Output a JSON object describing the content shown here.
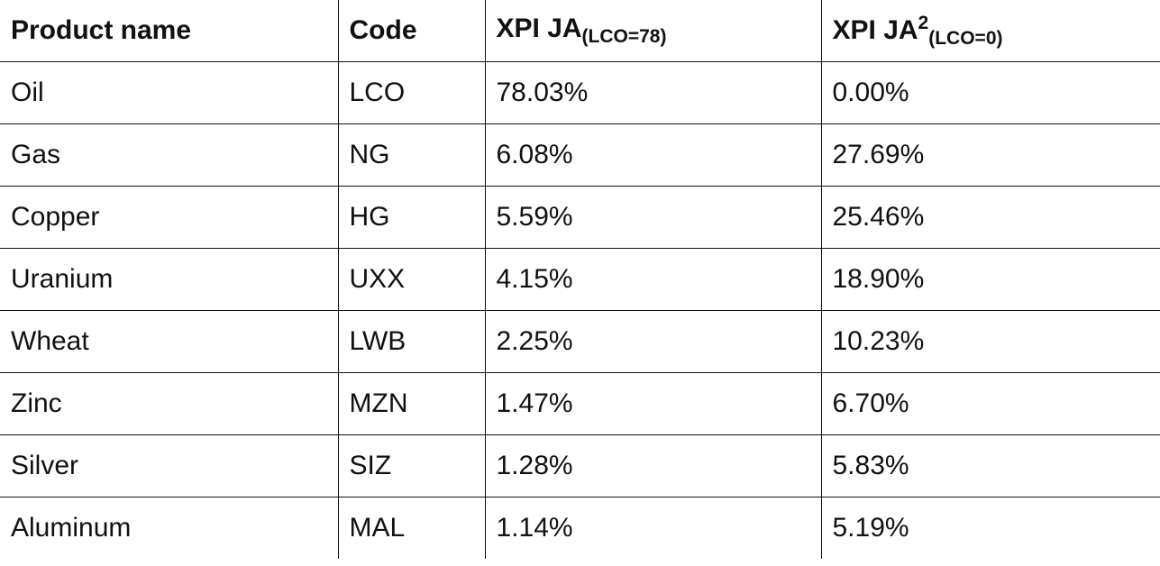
{
  "table": {
    "headers": [
      {
        "main": "Product name"
      },
      {
        "main": "Code"
      },
      {
        "main": "XPI JA",
        "sub": "(LCO=78)"
      },
      {
        "main": "XPI JA",
        "sup": "2",
        "sub": "(LCO=0)"
      }
    ],
    "rows": [
      [
        "Oil",
        "LCO",
        "78.03%",
        "0.00%"
      ],
      [
        "Gas",
        "NG",
        "6.08%",
        "27.69%"
      ],
      [
        "Copper",
        "HG",
        "5.59%",
        "25.46%"
      ],
      [
        "Uranium",
        "UXX",
        "4.15%",
        "18.90%"
      ],
      [
        "Wheat",
        "LWB",
        "2.25%",
        "10.23%"
      ],
      [
        "Zinc",
        "MZN",
        "1.47%",
        "6.70%"
      ],
      [
        "Silver",
        "SIZ",
        "1.28%",
        "5.83%"
      ],
      [
        "Aluminum",
        "MAL",
        "1.14%",
        "5.19%"
      ]
    ]
  }
}
